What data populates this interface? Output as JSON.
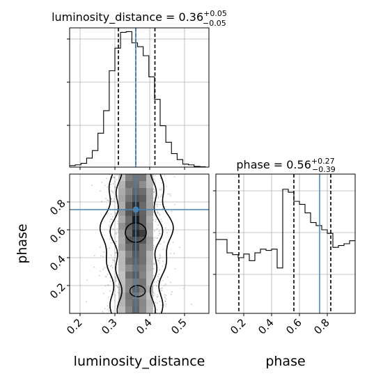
{
  "chart_data": {
    "type": "corner",
    "grid": true,
    "parameters": [
      "luminosity_distance",
      "phase"
    ],
    "truth": {
      "luminosity_distance": 0.36,
      "phase": 0.745
    },
    "truth_color": "#4682b4",
    "panels": [
      {
        "id": "hist-luminosity-distance",
        "type": "step-histogram",
        "parameter": "luminosity_distance",
        "title": {
          "base": "luminosity_distance = 0.36",
          "sup": "+0.05",
          "sub": "−0.05"
        },
        "xlim": [
          0.17,
          0.57
        ],
        "xticks": [
          0.2,
          0.3,
          0.4,
          0.5
        ],
        "quantiles": [
          0.31,
          0.36,
          0.415
        ],
        "bin_edges": [
          0.17,
          0.18625,
          0.2025,
          0.21875,
          0.235,
          0.25125,
          0.2675,
          0.28375,
          0.3,
          0.31625,
          0.3325,
          0.34875,
          0.365,
          0.38125,
          0.3975,
          0.41375,
          0.43,
          0.44625,
          0.4625,
          0.47875,
          0.495,
          0.51125,
          0.5275,
          0.54375,
          0.56,
          0.57
        ],
        "counts": [
          2,
          3,
          5,
          12,
          22,
          45,
          75,
          128,
          158,
          179,
          180,
          165,
          160,
          148,
          120,
          90,
          55,
          33,
          18,
          10,
          4,
          3,
          1,
          0.5,
          0
        ],
        "ymax": 185
      },
      {
        "id": "hist2d-distance-phase",
        "type": "2d-density",
        "x": "luminosity_distance",
        "y": "phase",
        "xlabel": "luminosity_distance",
        "ylabel": "phase",
        "xlim": [
          0.17,
          0.57
        ],
        "ylim": [
          0.0,
          1.0
        ],
        "xticks": [
          0.2,
          0.3,
          0.4,
          0.5
        ],
        "yticks": [
          0.2,
          0.4,
          0.6,
          0.8
        ],
        "peak": [
          0.36,
          0.58
        ]
      },
      {
        "id": "hist-phase",
        "type": "step-histogram",
        "parameter": "phase",
        "xlabel": "phase",
        "title": {
          "base": "phase = 0.56",
          "sup": "+0.27",
          "sub": "−0.39"
        },
        "xlim": [
          0.0,
          1.0
        ],
        "xticks": [
          0.2,
          0.4,
          0.6,
          0.8
        ],
        "quantiles": [
          0.165,
          0.56,
          0.825
        ],
        "bin_edges": [
          0.0,
          0.04,
          0.08,
          0.12,
          0.16,
          0.2,
          0.24,
          0.28,
          0.32,
          0.36,
          0.4,
          0.44,
          0.48,
          0.52,
          0.56,
          0.6,
          0.64,
          0.68,
          0.72,
          0.76,
          0.8,
          0.84,
          0.88,
          0.92,
          0.96,
          1.0
        ],
        "counts": [
          122,
          122,
          100,
          97,
          92,
          98,
          87,
          100,
          106,
          104,
          106,
          75,
          205,
          200,
          185,
          180,
          166,
          150,
          145,
          138,
          132,
          109,
          112,
          115,
          120
        ],
        "ymax": 230
      }
    ]
  }
}
